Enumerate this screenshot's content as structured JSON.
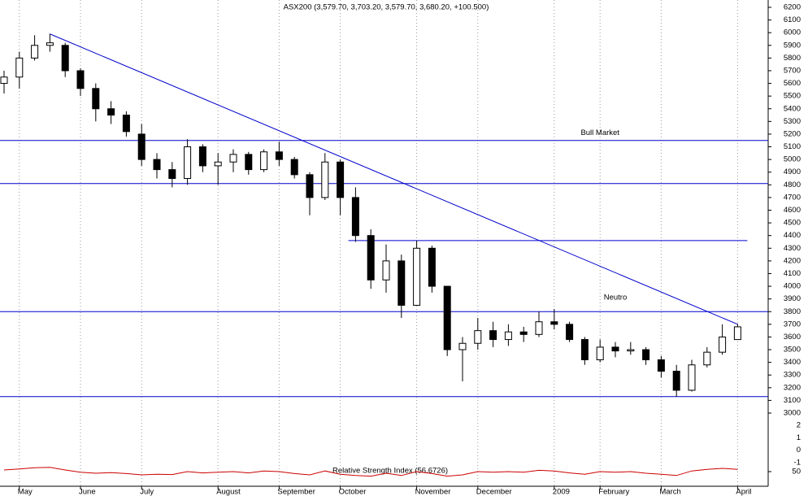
{
  "chart_data": [
    {
      "type": "candlestick",
      "title": "ASX200 (3,579.70, 3,703.20, 3,579.70, 3,680.20, +100.500)",
      "categories": [
        null,
        "May",
        null,
        null,
        null,
        "June",
        null,
        null,
        null,
        "July",
        null,
        null,
        null,
        null,
        "August",
        null,
        null,
        null,
        "September",
        null,
        null,
        null,
        "October",
        null,
        null,
        null,
        null,
        "November",
        null,
        null,
        null,
        "December",
        null,
        null,
        null,
        null,
        "2009",
        null,
        null,
        "February",
        null,
        null,
        null,
        "March",
        null,
        null,
        null,
        null,
        "April"
      ],
      "open": [
        5600,
        5650,
        5800,
        5900,
        5900,
        5700,
        5560,
        5400,
        5350,
        5200,
        5000,
        4920,
        4850,
        5100,
        4950,
        4980,
        5040,
        4920,
        5060,
        5000,
        4880,
        4700,
        4980,
        4700,
        4400,
        4050,
        4200,
        3850,
        4300,
        4000,
        3500,
        3550,
        3650,
        3580,
        3640,
        3620,
        3720,
        3700,
        3580,
        3420,
        3520,
        3490,
        3500,
        3420,
        3330,
        3180,
        3380,
        3480,
        3579.7
      ],
      "high": [
        5700,
        5850,
        5980,
        5990,
        5920,
        5720,
        5600,
        5460,
        5380,
        5280,
        5050,
        4980,
        5160,
        5120,
        5050,
        5080,
        5060,
        5080,
        5140,
        5020,
        4900,
        5050,
        5000,
        4780,
        4450,
        4330,
        4250,
        4360,
        4320,
        4000,
        3600,
        3750,
        3720,
        3700,
        3680,
        3800,
        3820,
        3720,
        3600,
        3580,
        3560,
        3560,
        3520,
        3450,
        3380,
        3420,
        3520,
        3700,
        3703.2
      ],
      "low": [
        5520,
        5560,
        5780,
        5850,
        5650,
        5500,
        5300,
        5280,
        5180,
        4950,
        4850,
        4780,
        4800,
        4900,
        4800,
        4900,
        4880,
        4900,
        4950,
        4850,
        4560,
        4680,
        4560,
        4350,
        3980,
        3950,
        3750,
        3850,
        3950,
        3450,
        3250,
        3500,
        3520,
        3530,
        3560,
        3600,
        3660,
        3560,
        3380,
        3400,
        3440,
        3460,
        3380,
        3280,
        3130,
        3170,
        3360,
        3460,
        3579.7
      ],
      "close": [
        5650,
        5800,
        5900,
        5920,
        5700,
        5560,
        5400,
        5350,
        5220,
        5000,
        4920,
        4850,
        5100,
        4950,
        4980,
        5040,
        4920,
        5060,
        5000,
        4880,
        4700,
        4980,
        4700,
        4400,
        4050,
        4200,
        3850,
        4300,
        4000,
        3500,
        3550,
        3650,
        3580,
        3640,
        3620,
        3720,
        3700,
        3580,
        3420,
        3520,
        3490,
        3500,
        3420,
        3330,
        3180,
        3380,
        3480,
        3600,
        3680.2
      ],
      "color": "#000000",
      "line_color": "#0000cc",
      "ylim": [
        3000,
        6200
      ],
      "yticks": [
        3000,
        3100,
        3200,
        3300,
        3400,
        3500,
        3600,
        3700,
        3800,
        3900,
        4000,
        4100,
        4200,
        4300,
        4400,
        4500,
        4600,
        4700,
        4800,
        4900,
        5000,
        5100,
        5200,
        5300,
        5400,
        5500,
        5600,
        5700,
        5800,
        5900,
        6000,
        6100,
        6200
      ],
      "hlines": [
        5150,
        4810,
        3800,
        3130
      ],
      "segment": {
        "value": 4360,
        "x": [
          22,
          48
        ]
      },
      "trendline": {
        "x": [
          3,
          48
        ],
        "y": [
          5990,
          3700
        ]
      },
      "annotations": [
        {
          "text": "Bull Market",
          "at": 5210,
          "x": 39
        },
        {
          "text": "Neutro",
          "at": 3910,
          "x": 40
        }
      ],
      "grid": true
    },
    {
      "type": "line",
      "title": "Relative Strength Index (56.6726)",
      "color": "#cc0000",
      "values": [
        55,
        58,
        62,
        63,
        55,
        48,
        45,
        47,
        44,
        40,
        42,
        41,
        50,
        46,
        48,
        50,
        46,
        52,
        50,
        44,
        40,
        52,
        42,
        38,
        36,
        45,
        38,
        50,
        44,
        36,
        40,
        50,
        48,
        50,
        48,
        54,
        52,
        46,
        42,
        50,
        48,
        50,
        45,
        42,
        38,
        52,
        57,
        60,
        57
      ],
      "ylim": [
        0,
        100
      ],
      "yticks": [
        50
      ],
      "scale_labels": [
        "2",
        "1",
        "0",
        "-1"
      ]
    }
  ]
}
